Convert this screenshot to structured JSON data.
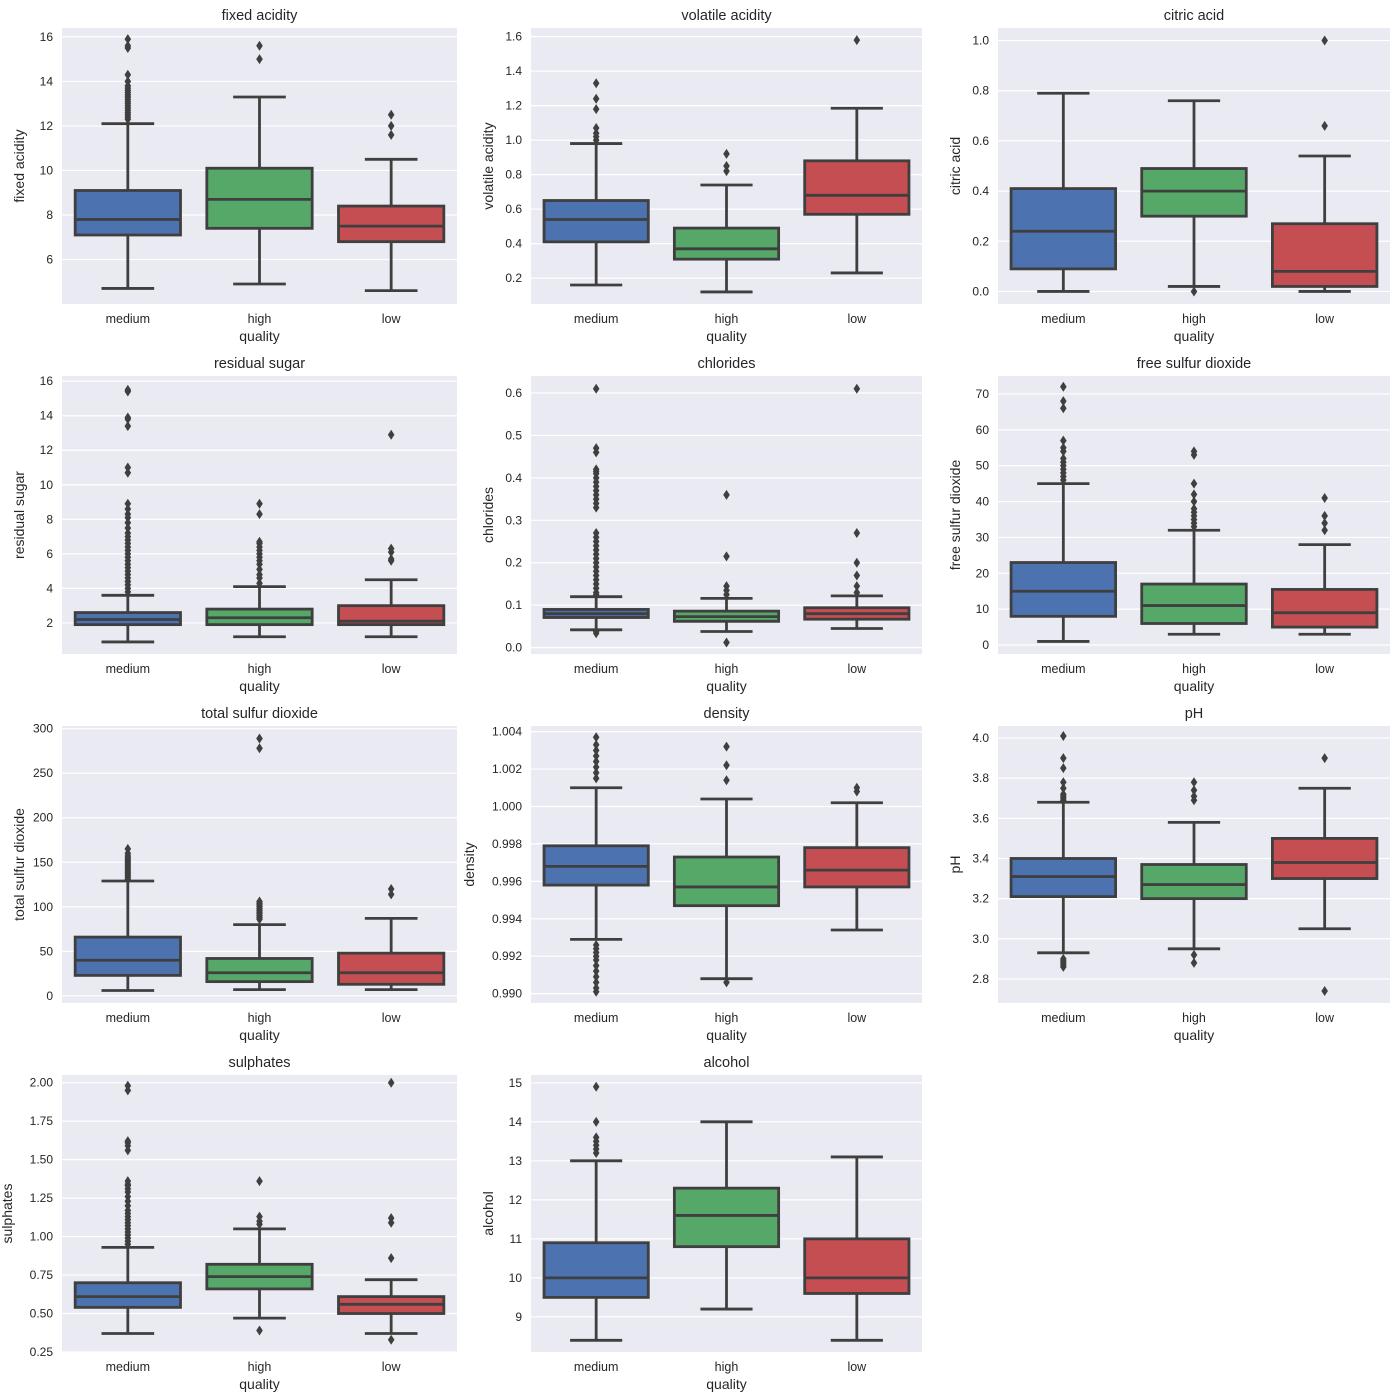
{
  "figure": {
    "category_colors": {
      "medium": "#4c72b0",
      "high": "#55a868",
      "low": "#c44e52"
    },
    "box_edge_color": "#3f3f3f",
    "panel_background": "#eaeaf2"
  },
  "chart_data": [
    {
      "type": "box",
      "title": "fixed acidity",
      "xlabel": "quality",
      "ylabel": "fixed acidity",
      "categories": [
        "medium",
        "high",
        "low"
      ],
      "ylim": [
        4.0,
        16.4
      ],
      "yticks": [
        6,
        8,
        10,
        12,
        14,
        16
      ],
      "tick_format": "0",
      "boxes": [
        {
          "category": "medium",
          "whisker_low": 4.7,
          "q1": 7.1,
          "median": 7.8,
          "q3": 9.1,
          "whisker_high": 12.1,
          "outliers": [
            12.3,
            12.4,
            12.5,
            12.6,
            12.7,
            12.8,
            12.9,
            13.0,
            13.1,
            13.2,
            13.3,
            13.4,
            13.5,
            13.6,
            13.7,
            13.8,
            14.0,
            14.3,
            15.5,
            15.6,
            15.9
          ]
        },
        {
          "category": "high",
          "whisker_low": 4.9,
          "q1": 7.4,
          "median": 8.7,
          "q3": 10.1,
          "whisker_high": 13.3,
          "outliers": [
            15.0,
            15.6
          ]
        },
        {
          "category": "low",
          "whisker_low": 4.6,
          "q1": 6.8,
          "median": 7.5,
          "q3": 8.4,
          "whisker_high": 10.5,
          "outliers": [
            11.6,
            12.0,
            12.5
          ]
        }
      ]
    },
    {
      "type": "box",
      "title": "volatile acidity",
      "xlabel": "quality",
      "ylabel": "volatile acidity",
      "categories": [
        "medium",
        "high",
        "low"
      ],
      "ylim": [
        0.05,
        1.65
      ],
      "yticks": [
        0.2,
        0.4,
        0.6,
        0.8,
        1.0,
        1.2,
        1.4,
        1.6
      ],
      "tick_format": "1",
      "boxes": [
        {
          "category": "medium",
          "whisker_low": 0.16,
          "q1": 0.41,
          "median": 0.54,
          "q3": 0.65,
          "whisker_high": 0.98,
          "outliers": [
            1.0,
            1.02,
            1.04,
            1.07,
            1.18,
            1.24,
            1.33
          ]
        },
        {
          "category": "high",
          "whisker_low": 0.12,
          "q1": 0.31,
          "median": 0.37,
          "q3": 0.49,
          "whisker_high": 0.74,
          "outliers": [
            0.82,
            0.85,
            0.92
          ]
        },
        {
          "category": "low",
          "whisker_low": 0.23,
          "q1": 0.57,
          "median": 0.68,
          "q3": 0.88,
          "whisker_high": 1.185,
          "outliers": [
            1.58
          ]
        }
      ]
    },
    {
      "type": "box",
      "title": "citric acid",
      "xlabel": "quality",
      "ylabel": "citric acid",
      "categories": [
        "medium",
        "high",
        "low"
      ],
      "ylim": [
        -0.05,
        1.05
      ],
      "yticks": [
        0.0,
        0.2,
        0.4,
        0.6,
        0.8,
        1.0
      ],
      "tick_format": "1",
      "boxes": [
        {
          "category": "medium",
          "whisker_low": 0.0,
          "q1": 0.09,
          "median": 0.24,
          "q3": 0.41,
          "whisker_high": 0.79,
          "outliers": []
        },
        {
          "category": "high",
          "whisker_low": 0.02,
          "q1": 0.3,
          "median": 0.4,
          "q3": 0.49,
          "whisker_high": 0.76,
          "outliers": [
            0.0
          ]
        },
        {
          "category": "low",
          "whisker_low": 0.0,
          "q1": 0.02,
          "median": 0.08,
          "q3": 0.27,
          "whisker_high": 0.54,
          "outliers": [
            0.66,
            1.0
          ]
        }
      ]
    },
    {
      "type": "box",
      "title": "residual sugar",
      "xlabel": "quality",
      "ylabel": "residual sugar",
      "categories": [
        "medium",
        "high",
        "low"
      ],
      "ylim": [
        0.2,
        16.3
      ],
      "yticks": [
        2,
        4,
        6,
        8,
        10,
        12,
        14,
        16
      ],
      "tick_format": "0",
      "boxes": [
        {
          "category": "medium",
          "whisker_low": 0.9,
          "q1": 1.9,
          "median": 2.2,
          "q3": 2.6,
          "whisker_high": 3.6,
          "outliers": [
            3.8,
            4.0,
            4.2,
            4.4,
            4.6,
            4.8,
            5.0,
            5.2,
            5.4,
            5.6,
            5.8,
            6.0,
            6.2,
            6.4,
            6.6,
            6.8,
            7.0,
            7.2,
            7.5,
            7.8,
            8.1,
            8.3,
            8.6,
            8.9,
            10.7,
            11.0,
            13.4,
            13.8,
            13.9,
            15.4,
            15.5
          ]
        },
        {
          "category": "high",
          "whisker_low": 1.2,
          "q1": 1.9,
          "median": 2.3,
          "q3": 2.8,
          "whisker_high": 4.1,
          "outliers": [
            4.3,
            4.6,
            4.8,
            5.1,
            5.4,
            5.6,
            5.8,
            6.0,
            6.2,
            6.4,
            6.6,
            6.7,
            8.3,
            8.9
          ]
        },
        {
          "category": "low",
          "whisker_low": 1.2,
          "q1": 1.9,
          "median": 2.1,
          "q3": 3.0,
          "whisker_high": 4.5,
          "outliers": [
            5.6,
            5.7,
            6.1,
            6.3,
            12.9
          ]
        }
      ]
    },
    {
      "type": "box",
      "title": "chlorides",
      "xlabel": "quality",
      "ylabel": "chlorides",
      "categories": [
        "medium",
        "high",
        "low"
      ],
      "ylim": [
        -0.015,
        0.64
      ],
      "yticks": [
        0.0,
        0.1,
        0.2,
        0.3,
        0.4,
        0.5,
        0.6
      ],
      "tick_format": "1",
      "boxes": [
        {
          "category": "medium",
          "whisker_low": 0.042,
          "q1": 0.071,
          "median": 0.08,
          "q3": 0.09,
          "whisker_high": 0.12,
          "outliers": [
            0.034,
            0.038,
            0.125,
            0.13,
            0.14,
            0.15,
            0.16,
            0.17,
            0.18,
            0.19,
            0.2,
            0.21,
            0.22,
            0.23,
            0.24,
            0.25,
            0.26,
            0.27,
            0.33,
            0.34,
            0.35,
            0.36,
            0.37,
            0.38,
            0.39,
            0.4,
            0.41,
            0.415,
            0.42,
            0.46,
            0.47,
            0.61
          ]
        },
        {
          "category": "high",
          "whisker_low": 0.038,
          "q1": 0.062,
          "median": 0.073,
          "q3": 0.086,
          "whisker_high": 0.116,
          "outliers": [
            0.012,
            0.125,
            0.135,
            0.145,
            0.215,
            0.36
          ]
        },
        {
          "category": "low",
          "whisker_low": 0.045,
          "q1": 0.067,
          "median": 0.08,
          "q3": 0.094,
          "whisker_high": 0.122,
          "outliers": [
            0.13,
            0.145,
            0.17,
            0.2,
            0.27,
            0.61
          ]
        }
      ]
    },
    {
      "type": "box",
      "title": "free sulfur dioxide",
      "xlabel": "quality",
      "ylabel": "free sulfur dioxide",
      "categories": [
        "medium",
        "high",
        "low"
      ],
      "ylim": [
        -2.5,
        75
      ],
      "yticks": [
        0,
        10,
        20,
        30,
        40,
        50,
        60,
        70
      ],
      "tick_format": "0",
      "boxes": [
        {
          "category": "medium",
          "whisker_low": 1,
          "q1": 8,
          "median": 15,
          "q3": 23,
          "whisker_high": 45,
          "outliers": [
            46,
            47,
            48,
            49,
            50,
            51,
            52,
            54,
            55,
            57,
            66,
            68,
            72
          ]
        },
        {
          "category": "high",
          "whisker_low": 3,
          "q1": 6,
          "median": 11,
          "q3": 17,
          "whisker_high": 32,
          "outliers": [
            33,
            34,
            35,
            36,
            37,
            38,
            40,
            42,
            45,
            53,
            54
          ]
        },
        {
          "category": "low",
          "whisker_low": 3,
          "q1": 5,
          "median": 9,
          "q3": 15.5,
          "whisker_high": 28,
          "outliers": [
            32,
            34,
            36,
            41
          ]
        }
      ]
    },
    {
      "type": "box",
      "title": "total sulfur dioxide",
      "xlabel": "quality",
      "ylabel": "total sulfur dioxide",
      "categories": [
        "medium",
        "high",
        "low"
      ],
      "ylim": [
        -8,
        303
      ],
      "yticks": [
        0,
        50,
        100,
        150,
        200,
        250,
        300
      ],
      "tick_format": "0",
      "boxes": [
        {
          "category": "medium",
          "whisker_low": 6,
          "q1": 23,
          "median": 40,
          "q3": 66,
          "whisker_high": 129,
          "outliers": [
            131,
            133,
            135,
            137,
            139,
            141,
            143,
            145,
            147,
            149,
            151,
            153,
            155,
            157,
            160,
            165
          ]
        },
        {
          "category": "high",
          "whisker_low": 7,
          "q1": 16,
          "median": 26,
          "q3": 42,
          "whisker_high": 80,
          "outliers": [
            86,
            88,
            90,
            92,
            94,
            96,
            98,
            100,
            102,
            104,
            106,
            278,
            289
          ]
        },
        {
          "category": "low",
          "whisker_low": 7,
          "q1": 13,
          "median": 26,
          "q3": 48,
          "whisker_high": 87,
          "outliers": [
            114,
            120
          ]
        }
      ]
    },
    {
      "type": "box",
      "title": "density",
      "xlabel": "quality",
      "ylabel": "density",
      "categories": [
        "medium",
        "high",
        "low"
      ],
      "ylim": [
        0.9895,
        1.0043
      ],
      "yticks": [
        0.99,
        0.992,
        0.994,
        0.996,
        0.998,
        1.0,
        1.002,
        1.004
      ],
      "tick_format": "3",
      "boxes": [
        {
          "category": "medium",
          "whisker_low": 0.9929,
          "q1": 0.9958,
          "median": 0.9968,
          "q3": 0.9979,
          "whisker_high": 1.001,
          "outliers": [
            0.9901,
            0.9903,
            0.9906,
            0.9909,
            0.9912,
            0.9915,
            0.9918,
            0.992,
            0.9922,
            0.9924,
            0.9926,
            1.0015,
            1.0018,
            1.0021,
            1.0024,
            1.0027,
            1.003,
            1.0033,
            1.0037
          ]
        },
        {
          "category": "high",
          "whisker_low": 0.9908,
          "q1": 0.9947,
          "median": 0.9957,
          "q3": 0.9973,
          "whisker_high": 1.0004,
          "outliers": [
            0.9906,
            1.0014,
            1.0022,
            1.0032
          ]
        },
        {
          "category": "low",
          "whisker_low": 0.9934,
          "q1": 0.9957,
          "median": 0.9966,
          "q3": 0.9978,
          "whisker_high": 1.0002,
          "outliers": [
            1.0008,
            1.001
          ]
        }
      ]
    },
    {
      "type": "box",
      "title": "pH",
      "xlabel": "quality",
      "ylabel": "pH",
      "categories": [
        "medium",
        "high",
        "low"
      ],
      "ylim": [
        2.68,
        4.06
      ],
      "yticks": [
        2.8,
        3.0,
        3.2,
        3.4,
        3.6,
        3.8,
        4.0
      ],
      "tick_format": "1",
      "boxes": [
        {
          "category": "medium",
          "whisker_low": 2.93,
          "q1": 3.21,
          "median": 3.31,
          "q3": 3.4,
          "whisker_high": 3.68,
          "outliers": [
            2.86,
            2.87,
            2.88,
            2.89,
            2.9,
            3.69,
            3.7,
            3.71,
            3.72,
            3.75,
            3.78,
            3.85,
            3.9,
            4.01
          ]
        },
        {
          "category": "high",
          "whisker_low": 2.95,
          "q1": 3.2,
          "median": 3.27,
          "q3": 3.37,
          "whisker_high": 3.58,
          "outliers": [
            2.88,
            2.92,
            3.69,
            3.71,
            3.74,
            3.78
          ]
        },
        {
          "category": "low",
          "whisker_low": 3.05,
          "q1": 3.3,
          "median": 3.38,
          "q3": 3.5,
          "whisker_high": 3.75,
          "outliers": [
            2.74,
            3.9
          ]
        }
      ]
    },
    {
      "type": "box",
      "title": "sulphates",
      "xlabel": "quality",
      "ylabel": "sulphates",
      "categories": [
        "medium",
        "high",
        "low"
      ],
      "ylim": [
        0.25,
        2.05
      ],
      "yticks": [
        0.25,
        0.5,
        0.75,
        1.0,
        1.25,
        1.5,
        1.75,
        2.0
      ],
      "tick_format": "2",
      "boxes": [
        {
          "category": "medium",
          "whisker_low": 0.37,
          "q1": 0.54,
          "median": 0.61,
          "q3": 0.7,
          "whisker_high": 0.93,
          "outliers": [
            0.95,
            0.97,
            0.99,
            1.01,
            1.03,
            1.05,
            1.07,
            1.09,
            1.11,
            1.13,
            1.15,
            1.17,
            1.2,
            1.23,
            1.26,
            1.29,
            1.31,
            1.33,
            1.34,
            1.36,
            1.56,
            1.59,
            1.61,
            1.62,
            1.95,
            1.98
          ]
        },
        {
          "category": "high",
          "whisker_low": 0.47,
          "q1": 0.66,
          "median": 0.74,
          "q3": 0.82,
          "whisker_high": 1.05,
          "outliers": [
            0.39,
            1.08,
            1.1,
            1.13,
            1.36
          ]
        },
        {
          "category": "low",
          "whisker_low": 0.37,
          "q1": 0.5,
          "median": 0.56,
          "q3": 0.61,
          "whisker_high": 0.72,
          "outliers": [
            0.33,
            0.86,
            1.09,
            1.12,
            2.0
          ]
        }
      ]
    },
    {
      "type": "box",
      "title": "alcohol",
      "xlabel": "quality",
      "ylabel": "alcohol",
      "categories": [
        "medium",
        "high",
        "low"
      ],
      "ylim": [
        8.1,
        15.2
      ],
      "yticks": [
        9,
        10,
        11,
        12,
        13,
        14,
        15
      ],
      "tick_format": "0",
      "boxes": [
        {
          "category": "medium",
          "whisker_low": 8.4,
          "q1": 9.5,
          "median": 10.0,
          "q3": 10.9,
          "whisker_high": 13.0,
          "outliers": [
            13.2,
            13.3,
            13.4,
            13.5,
            13.6,
            14.0,
            14.9
          ]
        },
        {
          "category": "high",
          "whisker_low": 9.2,
          "q1": 10.8,
          "median": 11.6,
          "q3": 12.3,
          "whisker_high": 14.0,
          "outliers": []
        },
        {
          "category": "low",
          "whisker_low": 8.4,
          "q1": 9.6,
          "median": 10.0,
          "q3": 11.0,
          "whisker_high": 13.1,
          "outliers": []
        }
      ]
    }
  ]
}
